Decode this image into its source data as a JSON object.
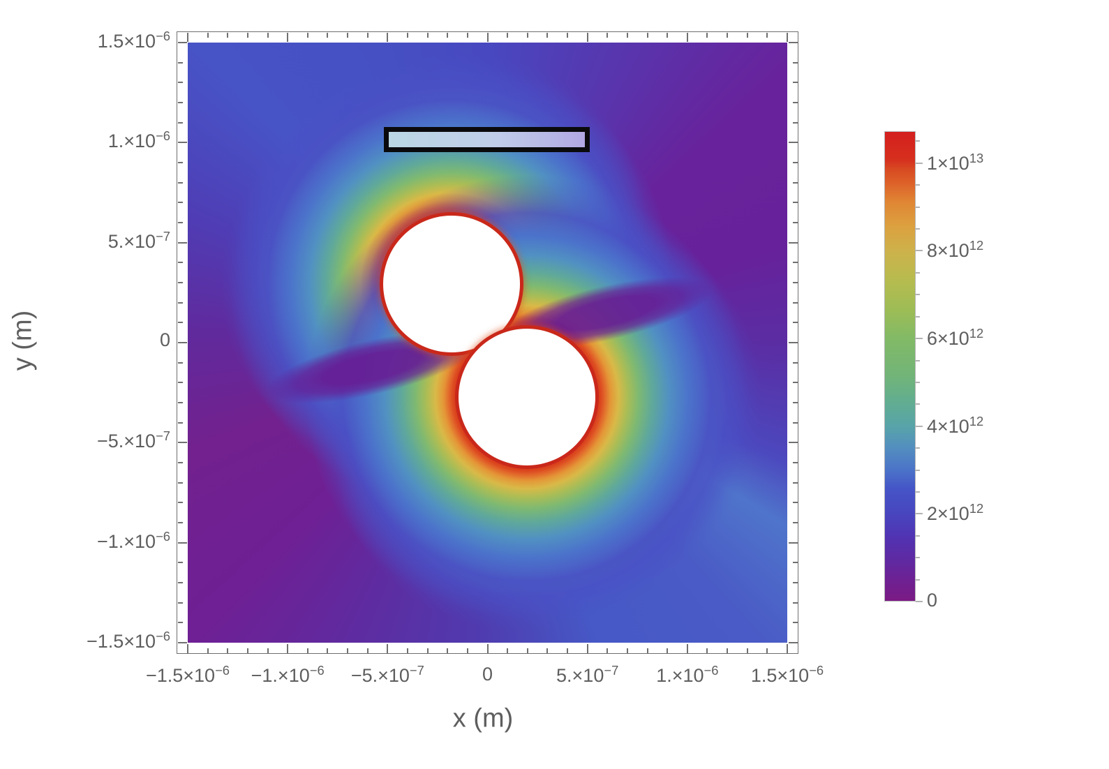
{
  "figure": {
    "background": "#ffffff",
    "kind": "density plot with colorbar legend"
  },
  "axes": {
    "x": {
      "title": "x (m)",
      "range": [
        -1.5e-06,
        1.5e-06
      ],
      "minor_step": 1e-07,
      "major_ticks": [
        {
          "text": "−1.5×10",
          "exp": "−6",
          "value": -1.5e-06
        },
        {
          "text": "−1.×10",
          "exp": "−6",
          "value": -1e-06
        },
        {
          "text": "−5.×10",
          "exp": "−7",
          "value": -5e-07
        },
        {
          "text": "0",
          "exp": "",
          "value": 0
        },
        {
          "text": "5.×10",
          "exp": "−7",
          "value": 5e-07
        },
        {
          "text": "1.×10",
          "exp": "−6",
          "value": 1e-06
        },
        {
          "text": "1.5×10",
          "exp": "−6",
          "value": 1.5e-06
        }
      ]
    },
    "y": {
      "title": "y (m)",
      "range": [
        -1.5e-06,
        1.5e-06
      ],
      "minor_step": 1e-07,
      "major_ticks": [
        {
          "text": "1.5×10",
          "exp": "−6",
          "value": 1.5e-06
        },
        {
          "text": "1.×10",
          "exp": "−6",
          "value": 1e-06
        },
        {
          "text": "5.×10",
          "exp": "−7",
          "value": 5e-07
        },
        {
          "text": "0",
          "exp": "",
          "value": 0
        },
        {
          "text": "−5.×10",
          "exp": "−7",
          "value": -5e-07
        },
        {
          "text": "−1.×10",
          "exp": "−6",
          "value": -1e-06
        },
        {
          "text": "−1.5×10",
          "exp": "−6",
          "value": -1.5e-06
        }
      ]
    }
  },
  "colorbar": {
    "range": [
      0,
      10730000000000.0
    ],
    "minor_step": 500000000000.0,
    "major_ticks": [
      {
        "text": "1×10",
        "exp": "13",
        "value": 10000000000000.0
      },
      {
        "text": "8×10",
        "exp": "12",
        "value": 8000000000000.0
      },
      {
        "text": "6×10",
        "exp": "12",
        "value": 6000000000000.0
      },
      {
        "text": "4×10",
        "exp": "12",
        "value": 4000000000000.0
      },
      {
        "text": "2×10",
        "exp": "12",
        "value": 2000000000000.0
      },
      {
        "text": "0",
        "exp": "",
        "value": 0
      }
    ]
  },
  "style": {
    "tick_label_color": "#5e5e5e",
    "frame_color": "#6e6e6e",
    "colormap_low": "#781c81",
    "colormap_high": "#d41f1e",
    "rectangle_border": "#0a0a0c",
    "rectangle_fill_left": "#bad7e3",
    "rectangle_fill_right": "#b1a8e2",
    "disk_fill": "#ffffff",
    "hot_rim": "#c9281a"
  },
  "chart_data": {
    "type": "heatmap",
    "title": "",
    "xlabel": "x (m)",
    "ylabel": "y (m)",
    "xlim": [
      -1.5e-06,
      1.5e-06
    ],
    "ylim": [
      -1.5e-06,
      1.5e-06
    ],
    "x_ticks": [
      -1.5e-06,
      -1e-06,
      -5e-07,
      0,
      5e-07,
      1e-06,
      1.5e-06
    ],
    "y_ticks": [
      -1.5e-06,
      -1e-06,
      -5e-07,
      0,
      5e-07,
      1e-06,
      1.5e-06
    ],
    "grid": false,
    "legend_position": "right vertical colorbar",
    "colorbar": {
      "tick_values": [
        0,
        2000000000000.0,
        4000000000000.0,
        6000000000000.0,
        8000000000000.0,
        10000000000000.0
      ],
      "value_range": [
        0,
        10730000000000.0
      ],
      "colormap": "rainbow: purple #781c81 → indigo → blue → teal → green → yellow-olive → orange → red #d41f1e"
    },
    "description": "Field-magnitude density map around two excluded white disks (dipole pair) touching near the origin. Hot red rims (≈1×10^13) surround each disk, fading through orange/yellow/green/teal/blue halos; upper disk halo extends to the upper left, lower disk halo to the lower right. Cold purple lobes (≈0) sweep from the contact point toward the upper-right and lower-left corners. A black-outlined rectangular bar with pale blue→lavender fill sits above the disks at y ≈ 1×10⁻⁶ m.",
    "features": {
      "disks": [
        {
          "center_x": -1.8e-07,
          "center_y": 2.9e-07,
          "radius": 3.3e-07,
          "fill": "white (excluded region)"
        },
        {
          "center_x": 2e-07,
          "center_y": -2.8e-07,
          "radius": 3.3e-07,
          "fill": "white (excluded region)"
        }
      ],
      "rectangle": {
        "x_min": -5e-07,
        "x_max": 5e-07,
        "y_min": 9.5e-07,
        "y_max": 1.08e-06,
        "stroke": "black",
        "fill": "light blue to light lavender gradient"
      },
      "hot_regions": "disk boundaries, strongest facing outward along the NW–SE dipole axis",
      "cold_regions": "NE and SW quadrants, thin purple wisps emanating from disk contact point"
    }
  }
}
